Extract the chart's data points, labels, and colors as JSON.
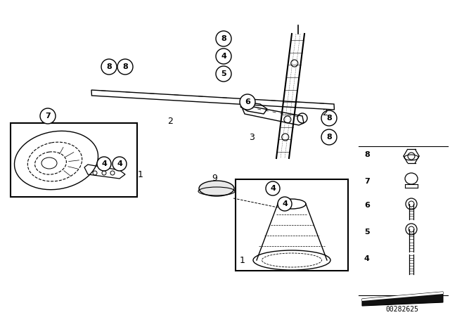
{
  "bg_color": "#ffffff",
  "line_color": "#000000",
  "fig_width": 6.4,
  "fig_height": 4.48,
  "dpi": 100,
  "part_number": "00282625"
}
